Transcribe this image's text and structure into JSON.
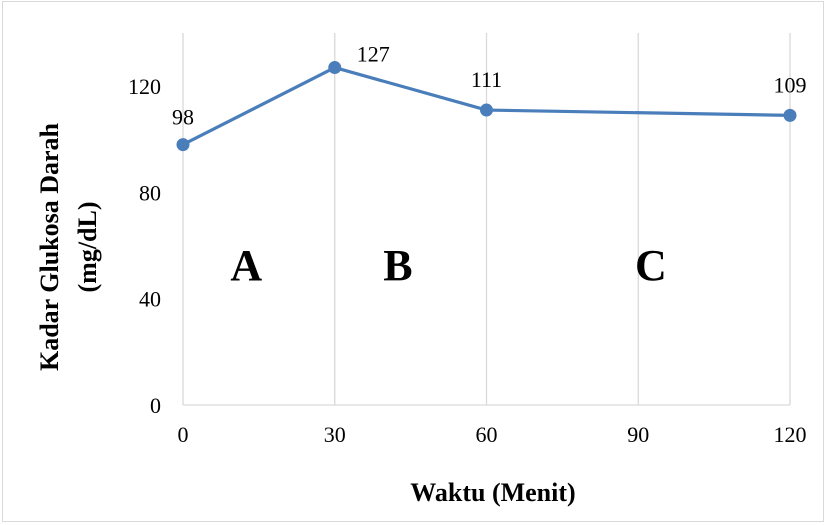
{
  "chart_data": {
    "type": "line",
    "xlabel": "Waktu (Menit)",
    "ylabel_line1": "Kadar Glukosa Darah",
    "ylabel_line2": "(mg/dL)",
    "x": [
      0,
      30,
      60,
      120
    ],
    "series": [
      {
        "values": [
          98,
          127,
          111,
          109
        ],
        "data_labels": [
          "98",
          "127",
          "111",
          "109"
        ]
      }
    ],
    "xlim": [
      0,
      120
    ],
    "ylim": [
      0,
      140
    ],
    "x_ticks": [
      0,
      30,
      60,
      90,
      120
    ],
    "x_tick_labels": [
      "0",
      "30",
      "60",
      "90",
      "120"
    ],
    "y_ticks": [
      0,
      40,
      80,
      120
    ],
    "y_tick_labels": [
      "0",
      "40",
      "80",
      "120"
    ],
    "grid": "vertical",
    "region_labels": [
      {
        "text": "A",
        "x": 12.5
      },
      {
        "text": "B",
        "x": 42.5
      },
      {
        "text": "C",
        "x": 92.5
      }
    ],
    "line_color": "#4a7ebb",
    "marker_color": "#4a7ebb",
    "grid_color": "#d9d9d9"
  }
}
